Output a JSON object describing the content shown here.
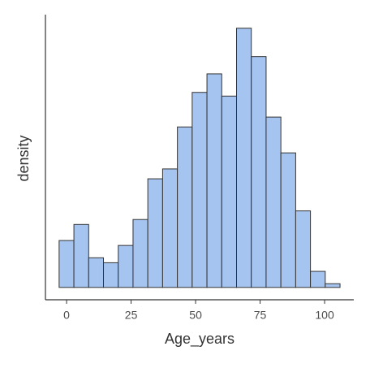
{
  "chart_data": {
    "type": "histogram",
    "x_label": "Age_years",
    "y_label": "density",
    "bins": [
      -2.9,
      2.83,
      8.56,
      14.29,
      20.02,
      25.75,
      31.48,
      37.21,
      42.94,
      48.67,
      54.4,
      60.13,
      65.86,
      71.59,
      77.32,
      83.05,
      88.78,
      94.51,
      100.24,
      105.97
    ],
    "values": [
      0.0038,
      0.0051,
      0.0024,
      0.002,
      0.0034,
      0.0055,
      0.0088,
      0.0096,
      0.013,
      0.0158,
      0.0173,
      0.0155,
      0.021,
      0.0187,
      0.0138,
      0.0109,
      0.0062,
      0.0013,
      0.0003
    ],
    "color": "#a6c4f0",
    "edge_color": "#333333",
    "xlim": [
      -8.2,
      111.3
    ],
    "xticks": [
      0,
      25,
      50,
      75,
      100
    ],
    "ylim": [
      -0.001,
      0.0221
    ]
  }
}
